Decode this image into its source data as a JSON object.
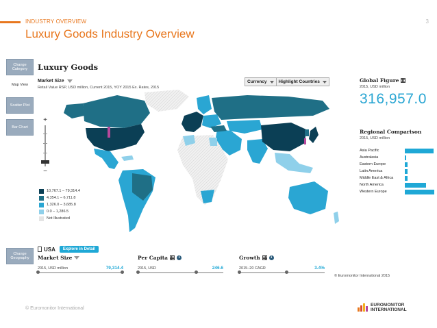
{
  "slide": {
    "section": "INDUSTRY OVERVIEW",
    "page": "3",
    "title": "Luxury Goods Industry Overview",
    "footer_copyright": "© Euromonitor International",
    "logo_line1": "EUROMONITOR",
    "logo_line2": "INTERNATIONAL"
  },
  "side_nav": {
    "change_category": "Change Category",
    "map_view": "Map View",
    "scatter_plot": "Scatter Plot",
    "bar_chart": "Bar Chart",
    "change_geography": "Change Geography"
  },
  "panel": {
    "title": "Luxury Goods",
    "market_size_label": "Market Size",
    "market_size_sub": "Retail Value RSP, USD million, Current 2015, YOY 2015 Ex. Rates, 2015",
    "currency_label": "Currency",
    "highlight_label": "Highlight Countries",
    "zoom_in": "+",
    "zoom_out": "−"
  },
  "legend": [
    {
      "label": "10,767.1 – 79,314.4",
      "color": "#0b3f55"
    },
    {
      "label": "4,354.1 – 6,711.8",
      "color": "#1f6f86"
    },
    {
      "label": "1,326.0 – 3,685.8",
      "color": "#2aa6d3"
    },
    {
      "label": "0.0 – 1,286.5",
      "color": "#8fd0ea"
    },
    {
      "label": "Not Illustrated",
      "color": "#e4e4e4"
    }
  ],
  "global": {
    "title": "Global Figure",
    "subtitle": "2015, USD million",
    "value": "316,957.0"
  },
  "regional": {
    "title": "Regional Comparison",
    "subtitle": "2015, USD million",
    "regions": [
      {
        "name": "Asia Pacific",
        "share": 0.95
      },
      {
        "name": "Australasia",
        "share": 0.05
      },
      {
        "name": "Eastern Europe",
        "share": 0.1
      },
      {
        "name": "Latin America",
        "share": 0.09
      },
      {
        "name": "Middle East & Africa",
        "share": 0.1
      },
      {
        "name": "North America",
        "share": 0.7
      },
      {
        "name": "Western Europe",
        "share": 0.98
      }
    ]
  },
  "country": {
    "name": "USA",
    "explore": "Explore in Detail",
    "metrics": [
      {
        "title": "Market Size",
        "sub": "2015, USD million",
        "value": "79,314.4",
        "position": 0.98
      },
      {
        "title": "Per Capita",
        "sub": "2015, USD",
        "value": "246.6",
        "position": 0.68
      },
      {
        "title": "Growth",
        "sub": "2015–20 CAGR",
        "value": "3.4%",
        "position": 0.55
      }
    ]
  },
  "panel_copyright": "© Euromonitor International 2015"
}
